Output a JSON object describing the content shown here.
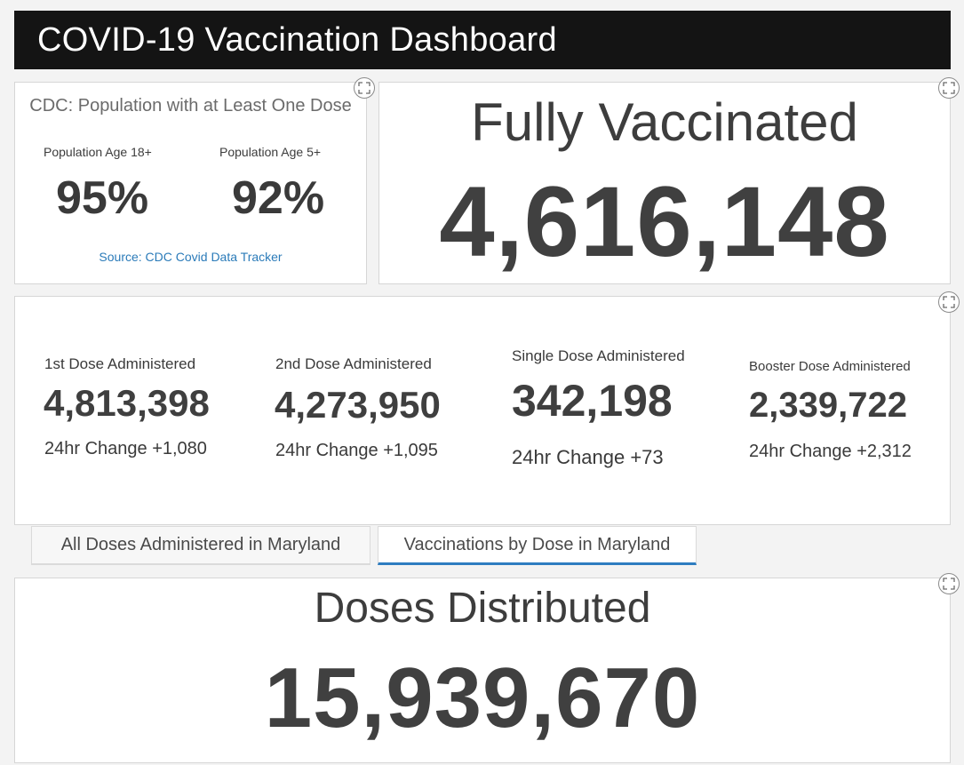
{
  "header": {
    "title": "COVID-19 Vaccination Dashboard"
  },
  "cdc": {
    "title": "CDC: Population with at Least One Dose",
    "groups": [
      {
        "label": "Population Age 18+",
        "value": "95%"
      },
      {
        "label": "Population Age 5+",
        "value": "92%"
      }
    ],
    "source": "Source: CDC Covid Data Tracker"
  },
  "fully_vaccinated": {
    "title": "Fully Vaccinated",
    "value": "4,616,148"
  },
  "doses": [
    {
      "label": "1st Dose Administered",
      "value": "4,813,398",
      "change": "24hr Change +1,080"
    },
    {
      "label": "2nd Dose Administered",
      "value": "4,273,950",
      "change": "24hr Change +1,095"
    },
    {
      "label": "Single Dose Administered",
      "value": "342,198",
      "change": "24hr Change +73"
    },
    {
      "label": "Booster Dose Administered",
      "value": "2,339,722",
      "change": "24hr Change +2,312"
    }
  ],
  "tabs": [
    {
      "label": "All Doses Administered in Maryland",
      "active": false
    },
    {
      "label": "Vaccinations by Dose in Maryland",
      "active": true
    }
  ],
  "doses_distributed": {
    "title": "Doses Distributed",
    "value": "15,939,670"
  },
  "icons": {
    "expand": "expand-icon"
  },
  "colors": {
    "header_bg": "#141414",
    "link": "#2b7bb9",
    "tab_active": "#2e7dc0"
  }
}
